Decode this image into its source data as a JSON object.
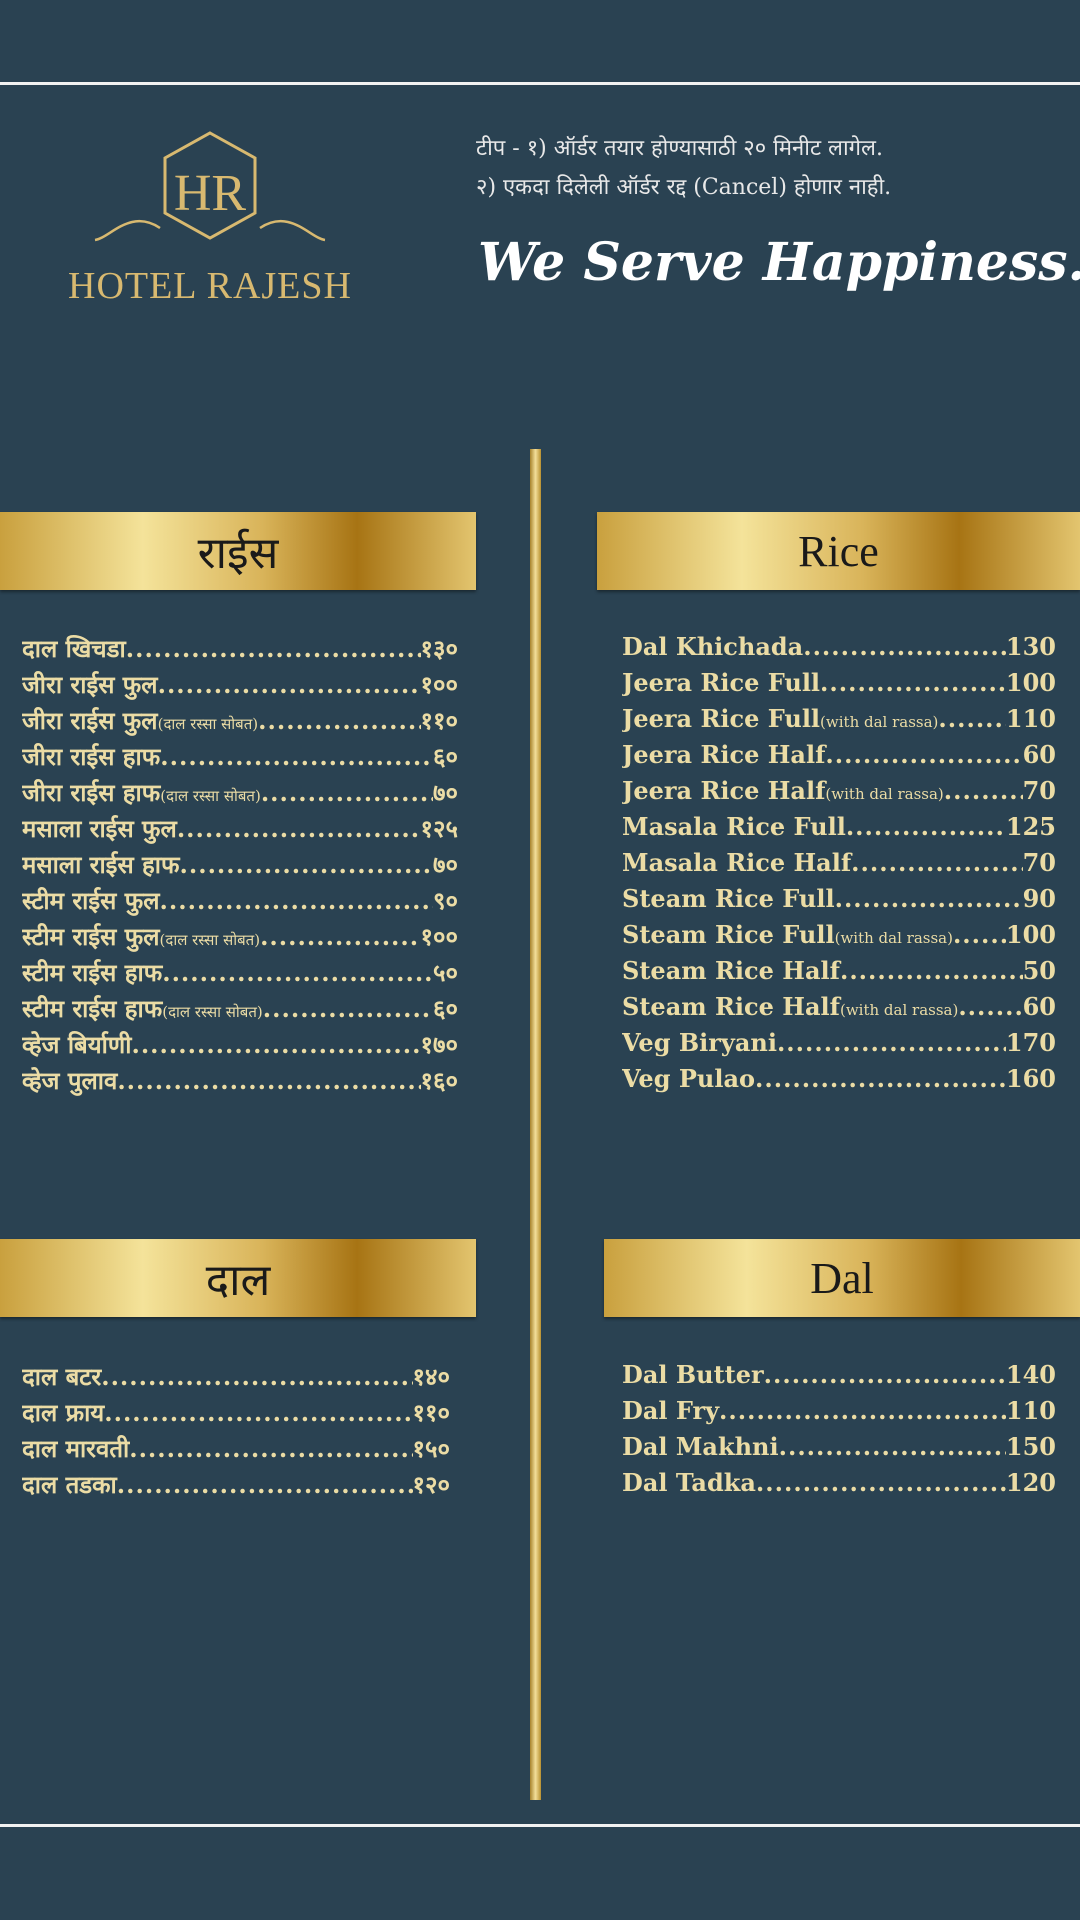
{
  "header": {
    "brand": "HOTEL RAJESH",
    "logo_monogram": "HR",
    "note_line1": "टीप - १) ऑर्डर तयार होण्यासाठी २० मिनीट लागेल.",
    "note_line2": "२) एकदा दिलेली ऑर्डर रद्द (Cancel) होणार नाही.",
    "tagline": "We Serve Happiness..."
  },
  "rice_mr": {
    "title": "राईस",
    "items": [
      {
        "name": "दाल खिचडा",
        "note": "",
        "price": "१३०"
      },
      {
        "name": "जीरा राईस फुल",
        "note": "",
        "price": "१००"
      },
      {
        "name": "जीरा राईस फुल",
        "note": " (दाल रस्सा सोबत)",
        "price": "११०"
      },
      {
        "name": "जीरा राईस हाफ",
        "note": "",
        "price": "६०"
      },
      {
        "name": "जीरा राईस हाफ",
        "note": " (दाल रस्सा सोबत)",
        "price": "७०"
      },
      {
        "name": "मसाला राईस फुल",
        "note": "",
        "price": "१२५"
      },
      {
        "name": "मसाला राईस हाफ",
        "note": "",
        "price": "७०"
      },
      {
        "name": "स्टीम राईस फुल",
        "note": "",
        "price": "९०"
      },
      {
        "name": "स्टीम राईस फुल",
        "note": " (दाल रस्सा सोबत)",
        "price": "१००"
      },
      {
        "name": "स्टीम राईस हाफ",
        "note": "",
        "price": "५०"
      },
      {
        "name": "स्टीम राईस हाफ",
        "note": " (दाल रस्सा सोबत)",
        "price": "६०"
      },
      {
        "name": "व्हेज बिर्याणी",
        "note": "",
        "price": "१७०"
      },
      {
        "name": "व्हेज पुलाव",
        "note": "",
        "price": "१६०"
      }
    ]
  },
  "rice_en": {
    "title": "Rice",
    "items": [
      {
        "name": "Dal Khichada",
        "note": "",
        "price": "130"
      },
      {
        "name": "Jeera Rice Full",
        "note": "",
        "price": "100"
      },
      {
        "name": "Jeera Rice Full",
        "note": "(with dal rassa)",
        "price": "110"
      },
      {
        "name": "Jeera Rice Half",
        "note": "",
        "price": "60"
      },
      {
        "name": "Jeera Rice Half",
        "note": "(with dal rassa)",
        "price": "70"
      },
      {
        "name": "Masala Rice Full",
        "note": "",
        "price": "125"
      },
      {
        "name": "Masala Rice Half",
        "note": "",
        "price": "70"
      },
      {
        "name": "Steam Rice Full",
        "note": "",
        "price": "90"
      },
      {
        "name": "Steam Rice Full",
        "note": "(with dal rassa)",
        "price": "100"
      },
      {
        "name": "Steam Rice Half",
        "note": "",
        "price": "50"
      },
      {
        "name": "Steam Rice Half",
        "note": "(with dal rassa)",
        "price": "60"
      },
      {
        "name": "Veg Biryani",
        "note": "",
        "price": "170"
      },
      {
        "name": "Veg Pulao",
        "note": "",
        "price": "160"
      }
    ]
  },
  "dal_mr": {
    "title": "दाल",
    "items": [
      {
        "name": "दाल बटर",
        "note": "",
        "price": "१४०"
      },
      {
        "name": "दाल फ्राय",
        "note": "",
        "price": "११०"
      },
      {
        "name": "दाल मारवती",
        "note": "",
        "price": "१५०"
      },
      {
        "name": "दाल तडका",
        "note": "",
        "price": "१२०"
      }
    ]
  },
  "dal_en": {
    "title": "Dal",
    "items": [
      {
        "name": "Dal Butter",
        "note": "",
        "price": "140"
      },
      {
        "name": "Dal Fry",
        "note": "",
        "price": "110"
      },
      {
        "name": "Dal Makhni",
        "note": "",
        "price": "150"
      },
      {
        "name": "Dal Tadka",
        "note": "",
        "price": "120"
      }
    ]
  },
  "colors": {
    "background": "#2a4252",
    "gold": "#d8b970",
    "text": "#ebdca5"
  }
}
